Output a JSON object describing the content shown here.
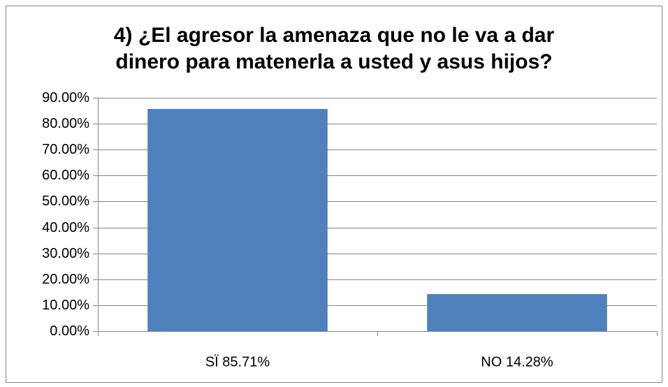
{
  "chart_data": {
    "type": "bar",
    "title": "4) ¿El agresor la amenaza que no le va a dar dinero para matenerla a usted y asus hijos?",
    "categories": [
      "SÏ 85.71%",
      "NO 14.28%"
    ],
    "values": [
      85.71,
      14.28
    ],
    "color": "#4f81bd",
    "ylim": [
      0,
      90
    ],
    "yticks": [
      {
        "value": 0,
        "label": "0.00%"
      },
      {
        "value": 10,
        "label": "10.00%"
      },
      {
        "value": 20,
        "label": "20.00%"
      },
      {
        "value": 30,
        "label": "30.00%"
      },
      {
        "value": 40,
        "label": "40.00%"
      },
      {
        "value": 50,
        "label": "50.00%"
      },
      {
        "value": 60,
        "label": "60.00%"
      },
      {
        "value": 70,
        "label": "70.00%"
      },
      {
        "value": 80,
        "label": "80.00%"
      },
      {
        "value": 90,
        "label": "90.00%"
      }
    ],
    "grid": true
  }
}
